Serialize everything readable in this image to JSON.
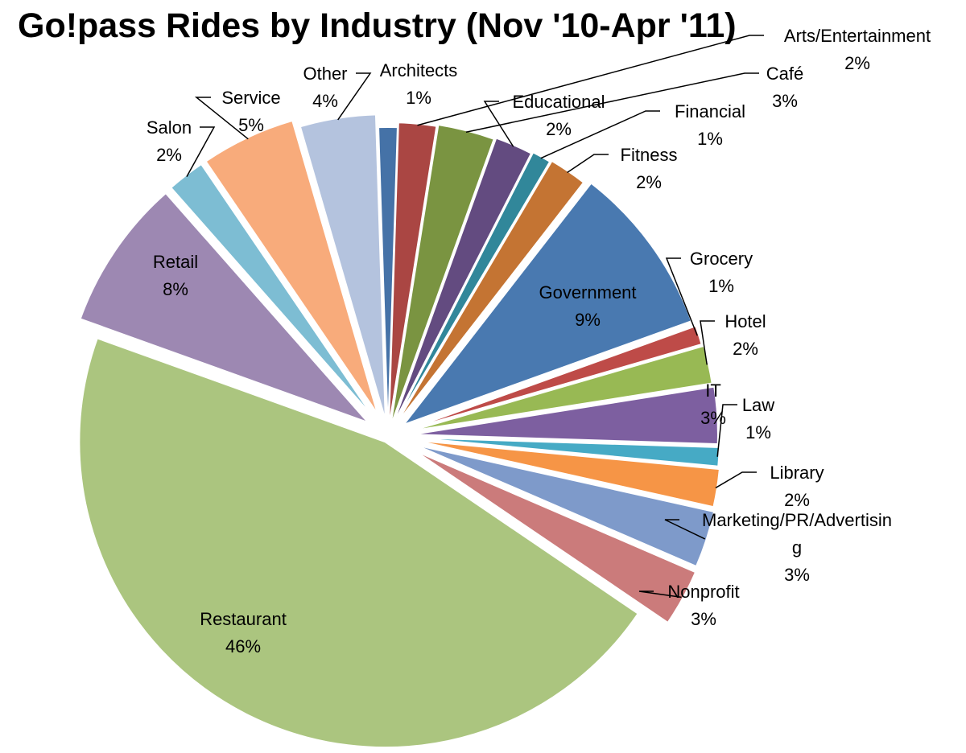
{
  "chart_data": {
    "type": "pie",
    "title": "Go!pass Rides by Industry (Nov '10-Apr '11)",
    "exploded": true,
    "slices": [
      {
        "label": "Architects",
        "lines": [
          "Architects"
        ],
        "value": 1,
        "pct": "1%",
        "color": "#4572A7"
      },
      {
        "label": "Arts/Entertainment",
        "lines": [
          "Arts/Entertainment"
        ],
        "value": 2,
        "pct": "2%",
        "color": "#AA4643"
      },
      {
        "label": "Café",
        "lines": [
          "Café"
        ],
        "value": 3,
        "pct": "3%",
        "color": "#7A9441"
      },
      {
        "label": "Educational",
        "lines": [
          "Educational"
        ],
        "value": 2,
        "pct": "2%",
        "color": "#634B80"
      },
      {
        "label": "Financial",
        "lines": [
          "Financial"
        ],
        "value": 1,
        "pct": "1%",
        "color": "#31879A"
      },
      {
        "label": "Fitness",
        "lines": [
          "Fitness"
        ],
        "value": 2,
        "pct": "2%",
        "color": "#C47433"
      },
      {
        "label": "Government",
        "lines": [
          "Government"
        ],
        "value": 9,
        "pct": "9%",
        "color": "#4979B0"
      },
      {
        "label": "Grocery",
        "lines": [
          "Grocery"
        ],
        "value": 1,
        "pct": "1%",
        "color": "#BE4B48"
      },
      {
        "label": "Hotel",
        "lines": [
          "Hotel"
        ],
        "value": 2,
        "pct": "2%",
        "color": "#98B954"
      },
      {
        "label": "IT",
        "lines": [
          "IT"
        ],
        "value": 3,
        "pct": "3%",
        "color": "#7D5FA0"
      },
      {
        "label": "Law",
        "lines": [
          "Law"
        ],
        "value": 1,
        "pct": "1%",
        "color": "#46AAC5"
      },
      {
        "label": "Library",
        "lines": [
          "Library"
        ],
        "value": 2,
        "pct": "2%",
        "color": "#F69546"
      },
      {
        "label": "Marketing/PR/Advertising",
        "lines": [
          "Marketing/PR/Advertisin",
          "g"
        ],
        "value": 3,
        "pct": "3%",
        "color": "#7E9ACA"
      },
      {
        "label": "Nonprofit",
        "lines": [
          "Nonprofit"
        ],
        "value": 3,
        "pct": "3%",
        "color": "#CB7B7B"
      },
      {
        "label": "Restaurant",
        "lines": [
          "Restaurant"
        ],
        "value": 46,
        "pct": "46%",
        "color": "#ABC57F"
      },
      {
        "label": "Retail",
        "lines": [
          "Retail"
        ],
        "value": 8,
        "pct": "8%",
        "color": "#9D88B2"
      },
      {
        "label": "Salon",
        "lines": [
          "Salon"
        ],
        "value": 2,
        "pct": "2%",
        "color": "#7DBDD3"
      },
      {
        "label": "Service",
        "lines": [
          "Service"
        ],
        "value": 5,
        "pct": "5%",
        "color": "#F8AB7B"
      },
      {
        "label": "Other",
        "lines": [
          "Other"
        ],
        "value": 4,
        "pct": "4%",
        "color": "#B4C3DE"
      }
    ]
  }
}
